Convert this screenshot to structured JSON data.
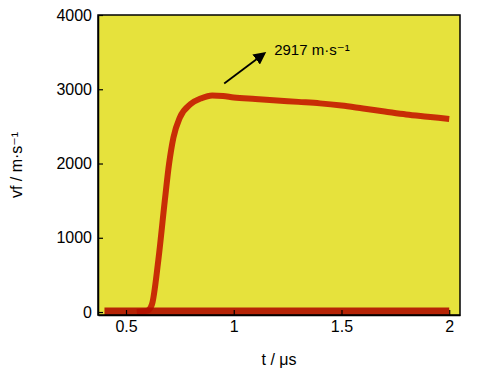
{
  "chart_data": {
    "type": "line",
    "x_label": "t / μs",
    "y_label": "vf / m·s⁻¹",
    "annotations": [
      {
        "text": "2917 m·s⁻¹"
      }
    ],
    "x": [
      0.4,
      0.45,
      0.5,
      0.55,
      0.6,
      0.62,
      0.65,
      0.68,
      0.7,
      0.72,
      0.75,
      0.8,
      0.85,
      0.9,
      0.95,
      1.0,
      1.1,
      1.2,
      1.3,
      1.4,
      1.5,
      1.6,
      1.7,
      1.8,
      1.9,
      2.0
    ],
    "series": [
      {
        "color": "#c41a00",
        "values": [
          null,
          null,
          null,
          0,
          20,
          100,
          700,
          1500,
          2000,
          2350,
          2620,
          2800,
          2880,
          2917,
          2910,
          2890,
          2870,
          2850,
          2830,
          2810,
          2780,
          2740,
          2700,
          2660,
          2630,
          2600
        ]
      },
      {
        "color": "#b01000",
        "values": [
          0,
          0,
          0,
          0,
          0,
          0,
          0,
          0,
          0,
          0,
          0,
          0,
          0,
          0,
          0,
          0,
          0,
          0,
          0,
          0,
          0,
          0,
          0,
          0,
          0,
          0
        ]
      }
    ],
    "xlim": [
      0.37,
      2.05
    ],
    "ylim": [
      -40,
      4000
    ],
    "xticks": [
      0.5,
      1,
      1.5,
      2
    ],
    "yticks": [
      0,
      1000,
      2000,
      3000,
      4000
    ],
    "grid": false
  }
}
